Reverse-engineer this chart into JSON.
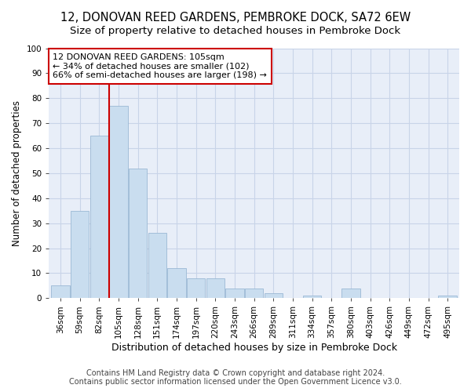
{
  "title": "12, DONOVAN REED GARDENS, PEMBROKE DOCK, SA72 6EW",
  "subtitle": "Size of property relative to detached houses in Pembroke Dock",
  "xlabel": "Distribution of detached houses by size in Pembroke Dock",
  "ylabel": "Number of detached properties",
  "categories": [
    "36sqm",
    "59sqm",
    "82sqm",
    "105sqm",
    "128sqm",
    "151sqm",
    "174sqm",
    "197sqm",
    "220sqm",
    "243sqm",
    "266sqm",
    "289sqm",
    "311sqm",
    "334sqm",
    "357sqm",
    "380sqm",
    "403sqm",
    "426sqm",
    "449sqm",
    "472sqm",
    "495sqm"
  ],
  "values": [
    5,
    35,
    65,
    77,
    52,
    26,
    12,
    8,
    8,
    4,
    4,
    2,
    0,
    1,
    0,
    4,
    0,
    0,
    0,
    0,
    1
  ],
  "bar_color": "#c9ddef",
  "bar_edge_color": "#9ab8d4",
  "grid_color": "#c8d4e8",
  "bg_color": "#e8eef8",
  "vline_color": "#cc0000",
  "vline_x_idx": 3,
  "annotation_text_line1": "12 DONOVAN REED GARDENS: 105sqm",
  "annotation_text_line2": "← 34% of detached houses are smaller (102)",
  "annotation_text_line3": "66% of semi-detached houses are larger (198) →",
  "annotation_box_color": "#ffffff",
  "annotation_box_edge": "#cc0000",
  "footer_line1": "Contains HM Land Registry data © Crown copyright and database right 2024.",
  "footer_line2": "Contains public sector information licensed under the Open Government Licence v3.0.",
  "ylim": [
    0,
    100
  ],
  "title_fontsize": 10.5,
  "subtitle_fontsize": 9.5,
  "xlabel_fontsize": 9,
  "ylabel_fontsize": 8.5,
  "tick_fontsize": 7.5,
  "footer_fontsize": 7,
  "annotation_fontsize": 8
}
